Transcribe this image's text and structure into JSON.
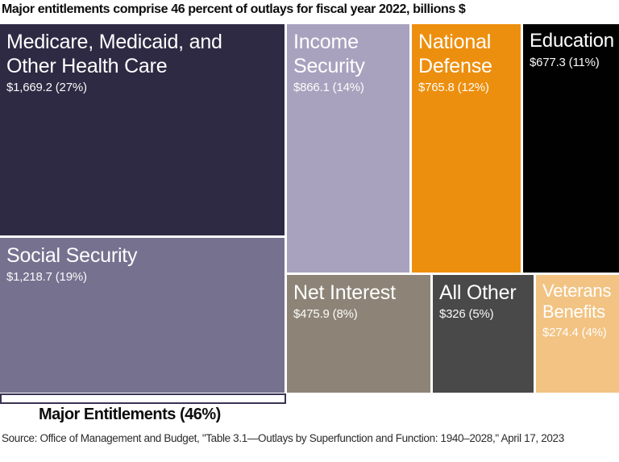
{
  "title": "Major entitlements comprise 46 percent of outlays for fiscal year 2022, billions $",
  "chart_data": {
    "type": "treemap",
    "title": "Major entitlements comprise 46 percent of outlays for fiscal year 2022, billions $",
    "unit": "billions $",
    "fiscal_year": 2022,
    "major_entitlements_share_percent": 46,
    "bracket_label": "Major Entitlements (46%)",
    "tiles": [
      {
        "name": "Medicare, Medicaid, and Other Health Care",
        "label": "$1,669.2 (27%)",
        "value": 1669.2,
        "percent": 27,
        "color": "#2e2a43",
        "group": "major-entitlements"
      },
      {
        "name": "Social Security",
        "label": "$1,218.7 (19%)",
        "value": 1218.7,
        "percent": 19,
        "color": "#76718f",
        "group": "major-entitlements"
      },
      {
        "name": "Income Security",
        "label": "$866.1 (14%)",
        "value": 866.1,
        "percent": 14,
        "color": "#a8a2be",
        "group": "other"
      },
      {
        "name": "National Defense",
        "label": "$765.8 (12%)",
        "value": 765.8,
        "percent": 12,
        "color": "#ed8f0e",
        "group": "other"
      },
      {
        "name": "Education",
        "label": "$677.3 (11%)",
        "value": 677.3,
        "percent": 11,
        "color": "#010101",
        "group": "other"
      },
      {
        "name": "Net Interest",
        "label": "$475.9 (8%)",
        "value": 475.9,
        "percent": 8,
        "color": "#8d8477",
        "group": "other"
      },
      {
        "name": "All Other",
        "label": "$326 (5%)",
        "value": 326,
        "percent": 5,
        "color": "#494949",
        "group": "other"
      },
      {
        "name": "Veterans Benefits",
        "label": "$274.4 (4%)",
        "value": 274.4,
        "percent": 4,
        "color": "#f2c383",
        "group": "other"
      }
    ]
  },
  "source": "Source: Office of Management and Budget, \"Table 3.1—Outlays by Superfunction and Function: 1940–2028,\" April 17, 2023"
}
